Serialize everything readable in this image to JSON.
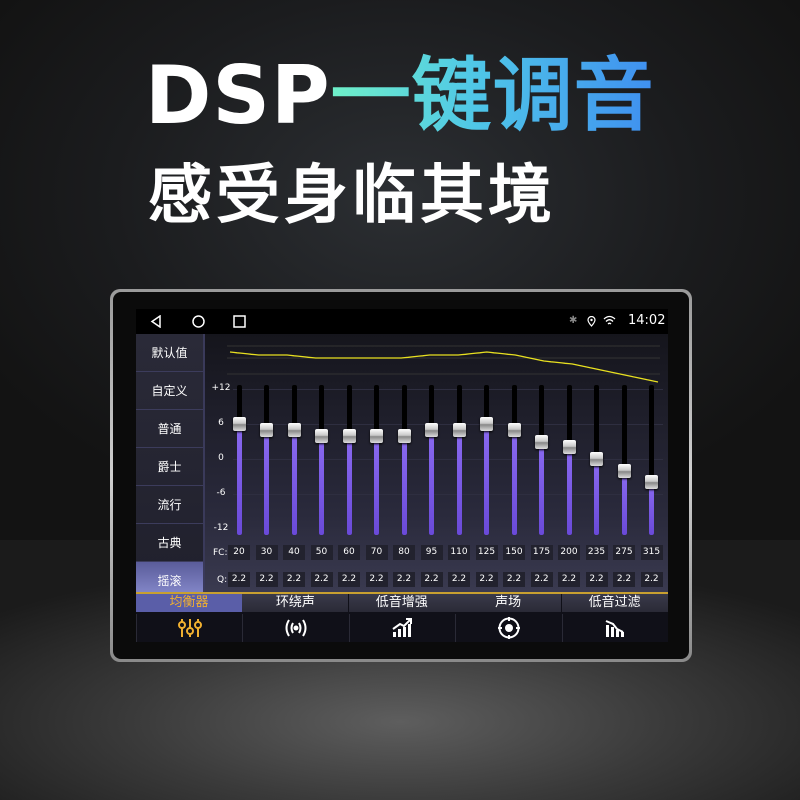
{
  "headline": {
    "brand": "DSP",
    "highlight": "一键调音",
    "subtitle": "感受身临其境",
    "highlight_colors": [
      "#6ff0c8",
      "#3f8ff0"
    ]
  },
  "status_bar": {
    "time": "14:02",
    "icons": [
      "back-icon",
      "home-icon",
      "recents-icon",
      "bluetooth-icon",
      "location-icon",
      "wifi-icon"
    ]
  },
  "presets": [
    {
      "label": "默认值"
    },
    {
      "label": "自定义"
    },
    {
      "label": "普通"
    },
    {
      "label": "爵士"
    },
    {
      "label": "流行"
    },
    {
      "label": "古典"
    },
    {
      "label": "摇滚",
      "selected": true
    }
  ],
  "equalizer": {
    "y_ticks": [
      "+12",
      "6",
      "0",
      "-6",
      "-12"
    ],
    "range": [
      -12,
      12
    ],
    "fc_label": "FC:",
    "q_label": "Q:",
    "bands": [
      {
        "fc": "20",
        "q": "2.2",
        "gain": 6
      },
      {
        "fc": "30",
        "q": "2.2",
        "gain": 5
      },
      {
        "fc": "40",
        "q": "2.2",
        "gain": 5
      },
      {
        "fc": "50",
        "q": "2.2",
        "gain": 4
      },
      {
        "fc": "60",
        "q": "2.2",
        "gain": 4
      },
      {
        "fc": "70",
        "q": "2.2",
        "gain": 4
      },
      {
        "fc": "80",
        "q": "2.2",
        "gain": 4
      },
      {
        "fc": "95",
        "q": "2.2",
        "gain": 5
      },
      {
        "fc": "110",
        "q": "2.2",
        "gain": 5
      },
      {
        "fc": "125",
        "q": "2.2",
        "gain": 6
      },
      {
        "fc": "150",
        "q": "2.2",
        "gain": 5
      },
      {
        "fc": "175",
        "q": "2.2",
        "gain": 3
      },
      {
        "fc": "200",
        "q": "2.2",
        "gain": 2
      },
      {
        "fc": "235",
        "q": "2.2",
        "gain": 0
      },
      {
        "fc": "275",
        "q": "2.2",
        "gain": -2
      },
      {
        "fc": "315",
        "q": "2.2",
        "gain": -4
      }
    ],
    "curve_color": "#e8e020",
    "page_indicator": {
      "pages": 3,
      "current": 1
    }
  },
  "tabs": [
    {
      "label": "均衡器",
      "icon": "equalizer-icon",
      "selected": true
    },
    {
      "label": "环绕声",
      "icon": "surround-icon"
    },
    {
      "label": "低音增强",
      "icon": "bass-boost-icon"
    },
    {
      "label": "声场",
      "icon": "sound-field-icon"
    },
    {
      "label": "低音过滤",
      "icon": "bass-filter-icon"
    }
  ],
  "colors": {
    "accent": "#f0b030",
    "slider_fill": "#7a5ae8",
    "tab_selected": "#5a5ea8"
  }
}
